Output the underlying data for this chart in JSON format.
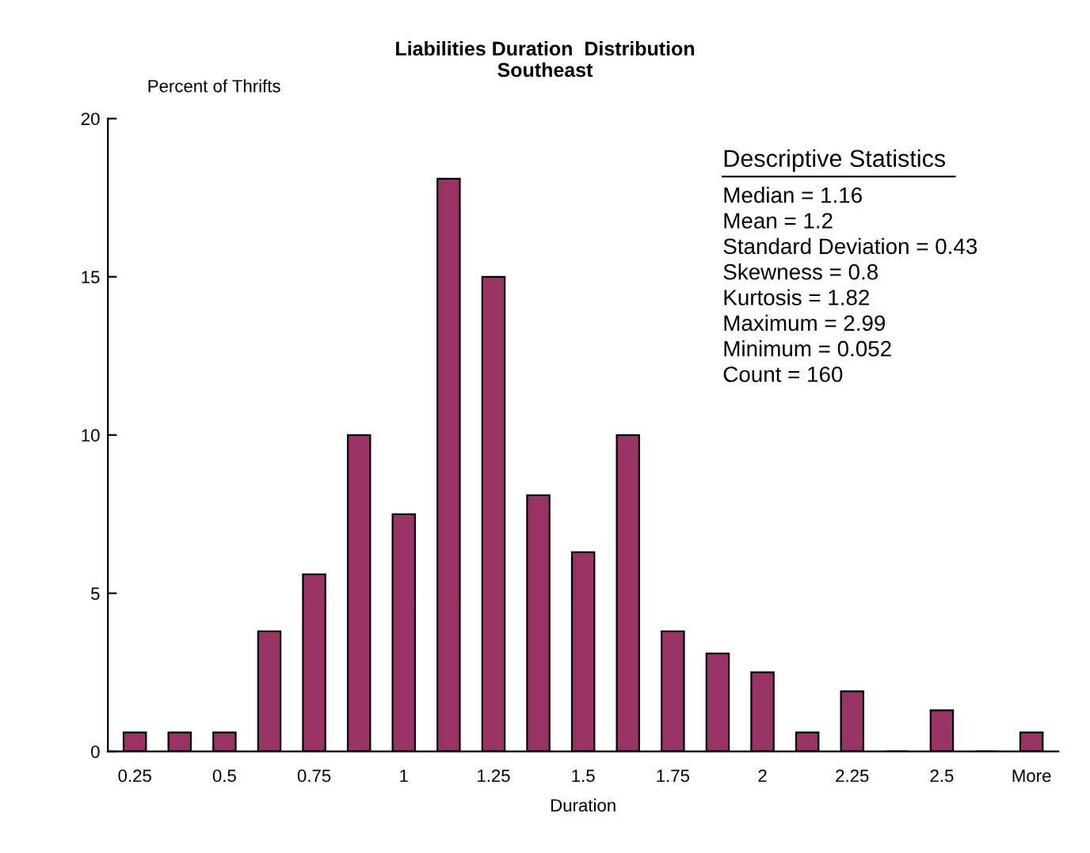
{
  "chart_data": {
    "type": "bar",
    "title": "Liabilities Duration  Distribution",
    "subtitle": "Southeast",
    "xlabel": "Duration",
    "ylabel": "Percent of Thrifts",
    "categories": [
      "0.25",
      null,
      "0.5",
      null,
      "0.75",
      null,
      "1",
      null,
      "1.25",
      null,
      "1.5",
      null,
      "1.75",
      null,
      "2",
      null,
      "2.25",
      null,
      "2.5",
      null,
      "More"
    ],
    "values": [
      0.6,
      0.6,
      0.6,
      3.8,
      5.6,
      10,
      7.5,
      18.1,
      15,
      8.1,
      6.3,
      10,
      3.8,
      3.1,
      2.5,
      0.6,
      1.9,
      0,
      1.3,
      0,
      0.6
    ],
    "color": "#993366",
    "ylim": [
      0,
      20
    ],
    "yticks": [
      0,
      5,
      10,
      15,
      20
    ],
    "grid": false,
    "legend": false,
    "annotations": [
      "Descriptive Statistics",
      "Median = 1.16",
      "Mean = 1.2",
      "Standard Deviation = 0.43",
      "Skewness = 0.8",
      "Kurtosis = 1.82",
      "Maximum = 2.99",
      "Minimum = 0.052",
      "Count = 160"
    ]
  }
}
